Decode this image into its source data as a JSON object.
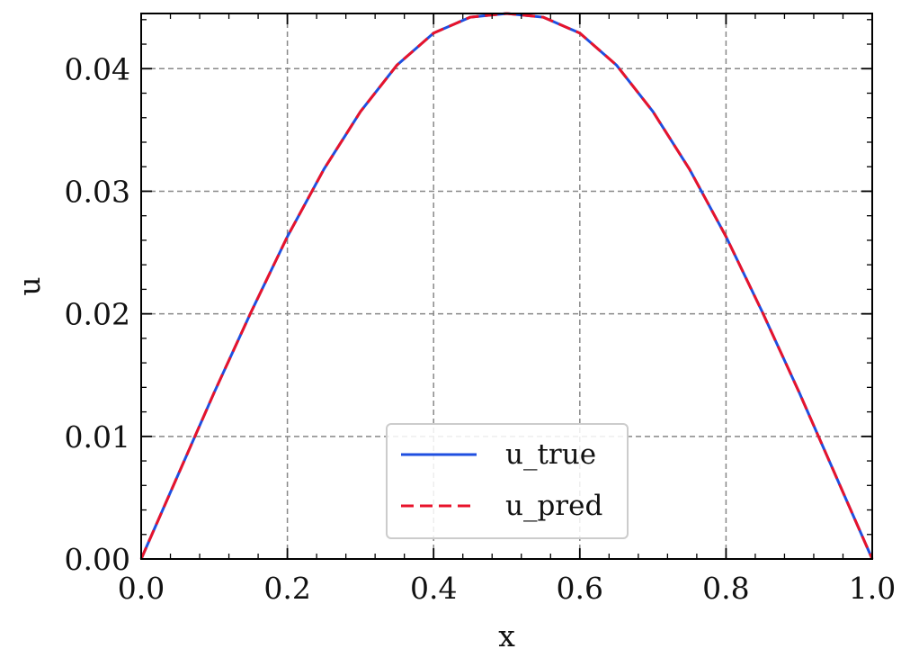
{
  "chart_data": {
    "type": "line",
    "title": "",
    "xlabel": "x",
    "ylabel": "u",
    "xlim": [
      0.0,
      1.0
    ],
    "ylim": [
      0.0,
      0.0445
    ],
    "grid": true,
    "legend_position": "lower-center",
    "x_ticks": [
      {
        "value": 0.0,
        "label": "0.0"
      },
      {
        "value": 0.2,
        "label": "0.2"
      },
      {
        "value": 0.4,
        "label": "0.4"
      },
      {
        "value": 0.6,
        "label": "0.6"
      },
      {
        "value": 0.8,
        "label": "0.8"
      },
      {
        "value": 1.0,
        "label": "1.0"
      }
    ],
    "y_ticks": [
      {
        "value": 0.0,
        "label": "0.00"
      },
      {
        "value": 0.01,
        "label": "0.01"
      },
      {
        "value": 0.02,
        "label": "0.02"
      },
      {
        "value": 0.03,
        "label": "0.03"
      },
      {
        "value": 0.04,
        "label": "0.04"
      }
    ],
    "x": [
      0.0,
      0.05,
      0.1,
      0.15,
      0.2,
      0.25,
      0.3,
      0.35,
      0.4,
      0.45,
      0.5,
      0.55,
      0.6,
      0.65,
      0.7,
      0.75,
      0.8,
      0.85,
      0.9,
      0.95,
      1.0
    ],
    "series": [
      {
        "name": "u_true",
        "color": "#1f4fe0",
        "style": "solid",
        "values": [
          0.0,
          0.0068,
          0.0136,
          0.0201,
          0.0263,
          0.0318,
          0.0365,
          0.0403,
          0.0429,
          0.0442,
          0.0445,
          0.0442,
          0.0429,
          0.0403,
          0.0365,
          0.0318,
          0.0263,
          0.0201,
          0.0136,
          0.0068,
          0.0
        ]
      },
      {
        "name": "u_pred",
        "color": "#e8132b",
        "style": "dashed",
        "values": [
          0.0,
          0.0068,
          0.0136,
          0.0201,
          0.0263,
          0.0318,
          0.0365,
          0.0403,
          0.0429,
          0.0442,
          0.0445,
          0.0442,
          0.0429,
          0.0403,
          0.0365,
          0.0318,
          0.0263,
          0.0201,
          0.0136,
          0.0068,
          0.0
        ]
      }
    ]
  }
}
